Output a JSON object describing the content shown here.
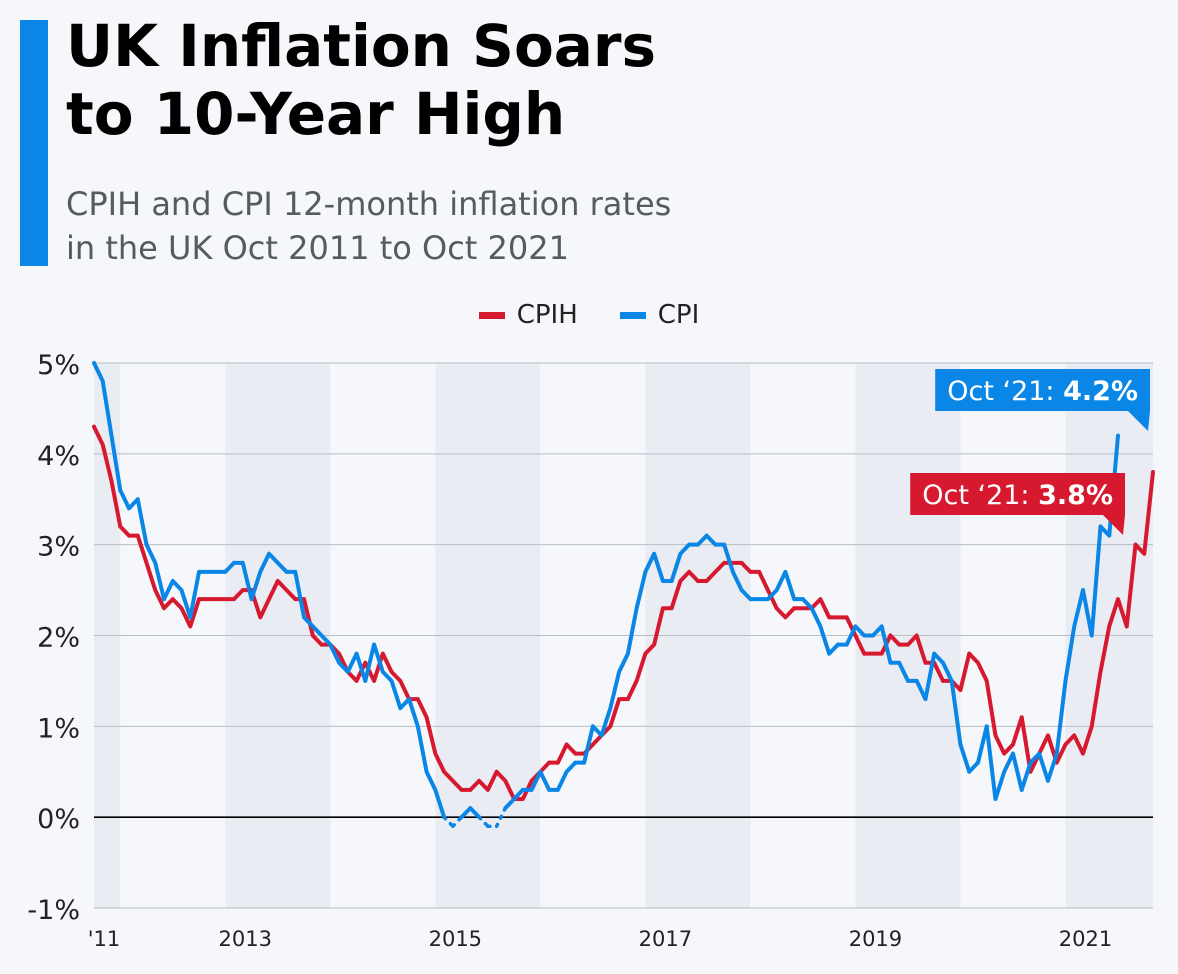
{
  "header": {
    "title_line1": "UK Inflation Soars",
    "title_line2": "to 10-Year High",
    "subtitle_line1": "CPIH and CPI 12-month inflation rates",
    "subtitle_line2": "in the UK Oct 2011 to Oct 2021"
  },
  "chart_data": {
    "type": "line",
    "title": "UK Inflation Soars to 10-Year High",
    "subtitle": "CPIH and CPI 12-month inflation rates in the UK Oct 2011 to Oct 2021",
    "xlabel": "",
    "ylabel": "",
    "x_start": "2011-10",
    "x_end": "2021-10",
    "x_tick_labels": [
      "'11",
      "2013",
      "2015",
      "2017",
      "2019",
      "2021"
    ],
    "x_tick_months": [
      0,
      15,
      39,
      63,
      87,
      111
    ],
    "shaded_year_bands": [
      [
        0,
        3
      ],
      [
        15,
        27
      ],
      [
        39,
        51
      ],
      [
        63,
        75
      ],
      [
        87,
        99
      ],
      [
        111,
        121
      ]
    ],
    "ylim": [
      -1,
      5
    ],
    "y_ticks": [
      -1,
      0,
      1,
      2,
      3,
      4,
      5
    ],
    "y_tick_labels": [
      "-1%",
      "0%",
      "1%",
      "2%",
      "3%",
      "4%",
      "5%"
    ],
    "grid": true,
    "legend_position": "top-center",
    "colors": {
      "CPIH": "#d7192f",
      "CPI": "#0a86e6",
      "accent": "#0a86e6",
      "zero_line": "#000000",
      "grid": "#b8bec4",
      "band": "#e9ecf3",
      "background": "#f5f7fa"
    },
    "series": [
      {
        "name": "CPIH",
        "values": [
          4.3,
          4.1,
          3.7,
          3.2,
          3.1,
          3.1,
          2.8,
          2.5,
          2.3,
          2.4,
          2.3,
          2.1,
          2.4,
          2.4,
          2.4,
          2.4,
          2.4,
          2.5,
          2.5,
          2.2,
          2.4,
          2.6,
          2.5,
          2.4,
          2.4,
          2.0,
          1.9,
          1.9,
          1.8,
          1.6,
          1.5,
          1.7,
          1.5,
          1.8,
          1.6,
          1.5,
          1.3,
          1.3,
          1.1,
          0.7,
          0.5,
          0.4,
          0.3,
          0.3,
          0.4,
          0.3,
          0.5,
          0.4,
          0.2,
          0.2,
          0.4,
          0.5,
          0.6,
          0.6,
          0.8,
          0.7,
          0.7,
          0.8,
          0.9,
          1.0,
          1.3,
          1.3,
          1.5,
          1.8,
          1.9,
          2.3,
          2.3,
          2.6,
          2.7,
          2.6,
          2.6,
          2.7,
          2.8,
          2.8,
          2.8,
          2.7,
          2.7,
          2.5,
          2.3,
          2.2,
          2.3,
          2.3,
          2.3,
          2.4,
          2.2,
          2.2,
          2.2,
          2.0,
          1.8,
          1.8,
          1.8,
          2.0,
          1.9,
          1.9,
          2.0,
          1.7,
          1.7,
          1.5,
          1.5,
          1.4,
          1.8,
          1.7,
          1.5,
          0.9,
          0.7,
          0.8,
          1.1,
          0.5,
          0.7,
          0.9,
          0.6,
          0.8,
          0.9,
          0.7,
          1.0,
          1.6,
          2.1,
          2.4,
          2.1,
          3.0,
          2.9,
          3.8
        ]
      },
      {
        "name": "CPI",
        "values": [
          5.0,
          4.8,
          4.2,
          3.6,
          3.4,
          3.5,
          3.0,
          2.8,
          2.4,
          2.6,
          2.5,
          2.2,
          2.7,
          2.7,
          2.7,
          2.7,
          2.8,
          2.8,
          2.4,
          2.7,
          2.9,
          2.8,
          2.7,
          2.7,
          2.2,
          2.1,
          2.0,
          1.9,
          1.7,
          1.6,
          1.8,
          1.5,
          1.9,
          1.6,
          1.5,
          1.2,
          1.3,
          1.0,
          0.5,
          0.3,
          0.0,
          -0.1,
          0.0,
          0.1,
          0.0,
          -0.1,
          -0.1,
          0.1,
          0.2,
          0.3,
          0.3,
          0.5,
          0.3,
          0.3,
          0.5,
          0.6,
          0.6,
          1.0,
          0.9,
          1.2,
          1.6,
          1.8,
          2.3,
          2.7,
          2.9,
          2.6,
          2.6,
          2.9,
          3.0,
          3.0,
          3.1,
          3.0,
          3.0,
          2.7,
          2.5,
          2.4,
          2.4,
          2.4,
          2.5,
          2.7,
          2.4,
          2.4,
          2.3,
          2.1,
          1.8,
          1.9,
          1.9,
          2.1,
          2.0,
          2.0,
          2.1,
          1.7,
          1.7,
          1.5,
          1.5,
          1.3,
          1.8,
          1.7,
          1.5,
          0.8,
          0.5,
          0.6,
          1.0,
          0.2,
          0.5,
          0.7,
          0.3,
          0.6,
          0.7,
          0.4,
          0.7,
          1.5,
          2.1,
          2.5,
          2.0,
          3.2,
          3.1,
          4.2
        ]
      }
    ],
    "dotted_segments_note": "CPI below 0% drawn dotted",
    "annotations": [
      {
        "series": "CPI",
        "label_prefix": "Oct ‘21: ",
        "label_value": "4.2%"
      },
      {
        "series": "CPIH",
        "label_prefix": "Oct ‘21: ",
        "label_value": "3.8%"
      }
    ]
  }
}
